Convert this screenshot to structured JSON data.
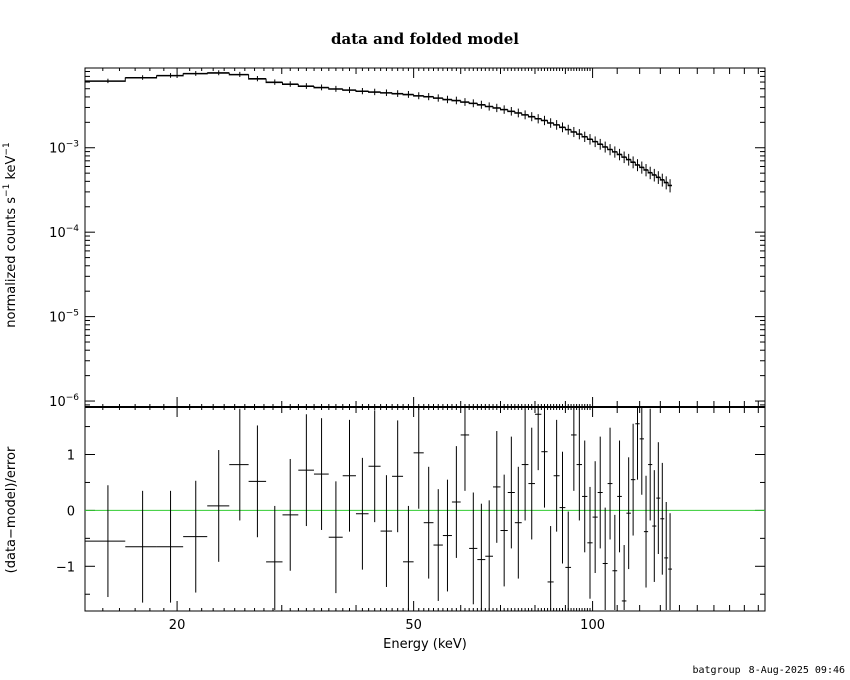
{
  "chart_data": [
    {
      "type": "scatter",
      "title": "data and folded model",
      "xlabel": "Energy (keV)",
      "ylabel": "normalized counts s",
      "ylabel_unit_a": "−1",
      "ylabel_mid": " keV",
      "ylabel_unit_b": "−1",
      "x_scale": "log",
      "y_scale": "log",
      "xlim": [
        14,
        195
      ],
      "ylim": [
        8.5e-07,
        0.0088
      ],
      "y_tick_labels": [
        {
          "value": 0.001,
          "base": "10",
          "exp": "−3"
        },
        {
          "value": 0.0001,
          "base": "10",
          "exp": "−4"
        },
        {
          "value": 1e-05,
          "base": "10",
          "exp": "−5"
        },
        {
          "value": 1e-06,
          "base": "10",
          "exp": "−6"
        }
      ],
      "series": [
        {
          "kind": "data-with-errors-and-step-model",
          "points": [
            [
              15.3,
              0.0062
            ],
            [
              17.5,
              0.0068
            ],
            [
              19.5,
              0.0072
            ],
            [
              21.5,
              0.0076
            ],
            [
              23.5,
              0.00775
            ],
            [
              25.5,
              0.0074
            ],
            [
              27.3,
              0.0066
            ],
            [
              29.2,
              0.006
            ],
            [
              31.0,
              0.0057
            ],
            [
              33.0,
              0.0054
            ],
            [
              35.0,
              0.0052
            ],
            [
              37.0,
              0.005
            ],
            [
              39.0,
              0.00485
            ],
            [
              41.0,
              0.0047
            ],
            [
              43.0,
              0.0046
            ],
            [
              45.0,
              0.0045
            ],
            [
              47.0,
              0.0044
            ],
            [
              49.0,
              0.0043
            ],
            [
              51.0,
              0.00415
            ],
            [
              53.0,
              0.00405
            ],
            [
              55.0,
              0.0039
            ],
            [
              57.0,
              0.00375
            ],
            [
              59.0,
              0.00365
            ],
            [
              61.0,
              0.0035
            ],
            [
              63.0,
              0.00338
            ],
            [
              65.0,
              0.00325
            ],
            [
              67.0,
              0.0031
            ],
            [
              69.0,
              0.00298
            ],
            [
              71.0,
              0.00285
            ],
            [
              73.0,
              0.00272
            ],
            [
              75.0,
              0.0026
            ],
            [
              77.0,
              0.00247
            ],
            [
              79.0,
              0.00235
            ],
            [
              81.0,
              0.00222
            ],
            [
              83.0,
              0.00212
            ],
            [
              85.0,
              0.00198
            ],
            [
              87.0,
              0.00188
            ],
            [
              89.0,
              0.00176
            ],
            [
              91.0,
              0.00165
            ],
            [
              93.0,
              0.00155
            ],
            [
              95.0,
              0.00146
            ],
            [
              97.0,
              0.00136
            ],
            [
              99.0,
              0.00127
            ],
            [
              101.0,
              0.00119
            ],
            [
              103.0,
              0.00111
            ],
            [
              105.0,
              0.00103
            ],
            [
              107.0,
              0.00096
            ],
            [
              109.0,
              0.0009
            ],
            [
              111.0,
              0.00084
            ],
            [
              113.0,
              0.00078
            ],
            [
              115.0,
              0.00073
            ],
            [
              117.0,
              0.00068
            ],
            [
              119.0,
              0.00063
            ],
            [
              121.0,
              0.00059
            ],
            [
              123.0,
              0.00055
            ],
            [
              125.0,
              0.00051
            ],
            [
              127.0,
              0.00048
            ],
            [
              129.0,
              0.00045
            ],
            [
              131.0,
              0.00042
            ],
            [
              133.0,
              0.00039
            ],
            [
              135.0,
              0.00036
            ]
          ]
        }
      ]
    },
    {
      "type": "scatter",
      "xlabel": "Energy (keV)",
      "ylabel": "(data−model)/error",
      "x_scale": "log",
      "xlim": [
        14,
        195
      ],
      "ylim": [
        -1.8,
        1.85
      ],
      "x_tick_labels": [
        {
          "value": 20,
          "label": "20"
        },
        {
          "value": 50,
          "label": "50"
        },
        {
          "value": 100,
          "label": "100"
        }
      ],
      "y_tick_labels": [
        {
          "value": 1,
          "label": "1"
        },
        {
          "value": 0,
          "label": "0"
        },
        {
          "value": -1,
          "label": "−1"
        }
      ],
      "reference_line": {
        "y": 0,
        "color": "#33cc33"
      },
      "series": [
        {
          "kind": "residuals",
          "points": [
            [
              15.3,
              -0.55
            ],
            [
              17.5,
              -0.65
            ],
            [
              19.5,
              -0.65
            ],
            [
              21.5,
              -0.47
            ],
            [
              23.5,
              0.08
            ],
            [
              25.5,
              0.82
            ],
            [
              27.3,
              0.52
            ],
            [
              29.2,
              -0.92
            ],
            [
              31.0,
              -0.08
            ],
            [
              33.0,
              0.72
            ],
            [
              35.0,
              0.65
            ],
            [
              37.0,
              -0.48
            ],
            [
              39.0,
              0.62
            ],
            [
              41.0,
              -0.06
            ],
            [
              43.0,
              0.79
            ],
            [
              45.0,
              -0.37
            ],
            [
              47.0,
              0.61
            ],
            [
              49.0,
              -0.92
            ],
            [
              51.0,
              1.03
            ],
            [
              53.0,
              -0.22
            ],
            [
              55.0,
              -0.62
            ],
            [
              57.0,
              -0.45
            ],
            [
              59.0,
              0.15
            ],
            [
              61.0,
              1.35
            ],
            [
              63.0,
              -0.68
            ],
            [
              65.0,
              -0.88
            ],
            [
              67.0,
              -0.82
            ],
            [
              69.0,
              0.42
            ],
            [
              71.0,
              -0.36
            ],
            [
              73.0,
              0.32
            ],
            [
              75.0,
              -0.22
            ],
            [
              77.0,
              0.82
            ],
            [
              79.0,
              0.48
            ],
            [
              81.0,
              1.72
            ],
            [
              83.0,
              1.05
            ],
            [
              85.0,
              -1.28
            ],
            [
              87.0,
              0.62
            ],
            [
              89.0,
              0.05
            ],
            [
              91.0,
              -1.02
            ],
            [
              93.0,
              1.35
            ],
            [
              95.0,
              0.82
            ],
            [
              97.0,
              0.25
            ],
            [
              99.0,
              -0.58
            ],
            [
              101.0,
              -0.12
            ],
            [
              103.0,
              0.32
            ],
            [
              105.0,
              -0.95
            ],
            [
              107.0,
              0.48
            ],
            [
              109.0,
              -1.08
            ],
            [
              111.0,
              0.25
            ],
            [
              113.0,
              -1.62
            ],
            [
              115.0,
              -0.05
            ],
            [
              117.0,
              0.55
            ],
            [
              119.0,
              1.55
            ],
            [
              121.0,
              1.28
            ],
            [
              123.0,
              -0.38
            ],
            [
              125.0,
              0.82
            ],
            [
              127.0,
              -0.28
            ],
            [
              129.0,
              0.22
            ],
            [
              131.0,
              -0.15
            ],
            [
              133.0,
              -0.85
            ],
            [
              135.0,
              -1.05
            ]
          ]
        }
      ]
    }
  ],
  "footer": {
    "program": "batgroup",
    "timestamp": "8-Aug-2025 09:46"
  }
}
